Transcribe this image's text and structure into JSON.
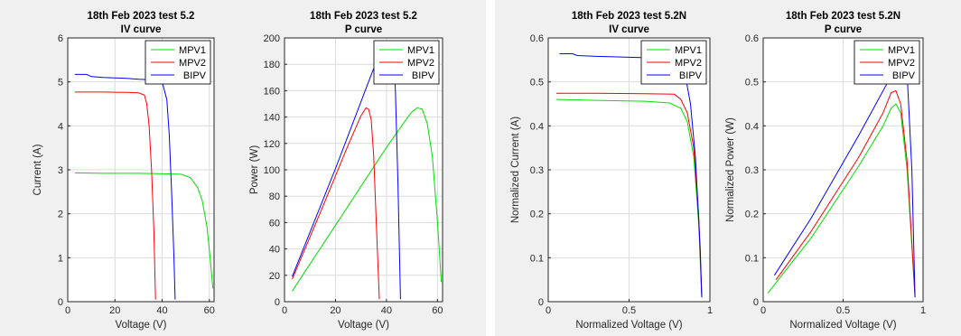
{
  "chart_data": [
    {
      "type": "line",
      "title": "18th Feb 2023 test 5.2",
      "subtitle": "IV curve",
      "xlabel": "Voltage (V)",
      "ylabel": "Current (A)",
      "xlim": [
        0,
        62
      ],
      "ylim": [
        0,
        6
      ],
      "xticks": [
        0,
        20,
        40,
        60
      ],
      "yticks": [
        0,
        1,
        2,
        3,
        4,
        5,
        6
      ],
      "grid": true,
      "legend": "top-right",
      "series": [
        {
          "name": "MPV1",
          "color": "#00e000",
          "x": [
            3,
            15,
            30,
            40,
            48,
            52,
            55,
            57,
            59,
            60.5,
            61.5
          ],
          "y": [
            2.93,
            2.92,
            2.92,
            2.91,
            2.9,
            2.82,
            2.6,
            2.3,
            1.7,
            0.9,
            0.3
          ]
        },
        {
          "name": "MPV2",
          "color": "#ff0000",
          "x": [
            3,
            15,
            25,
            30,
            32.5,
            33.5,
            34.5,
            35.5,
            36.5,
            37.2
          ],
          "y": [
            4.77,
            4.77,
            4.76,
            4.75,
            4.7,
            4.5,
            4.0,
            3.0,
            1.6,
            0.05
          ]
        },
        {
          "name": "BIPV",
          "color": "#0000ff",
          "x": [
            3,
            8,
            10,
            15,
            20,
            25,
            30,
            35,
            40,
            42,
            43,
            44,
            45,
            45.5
          ],
          "y": [
            5.17,
            5.17,
            5.12,
            5.1,
            5.09,
            5.08,
            5.06,
            5.05,
            5.0,
            4.6,
            3.8,
            2.5,
            1.0,
            0.05
          ]
        }
      ]
    },
    {
      "type": "line",
      "title": "18th Feb 2023 test 5.2",
      "subtitle": "P curve",
      "xlabel": "Voltage (V)",
      "ylabel": "Power (W)",
      "xlim": [
        0,
        62
      ],
      "ylim": [
        0,
        200
      ],
      "xticks": [
        0,
        20,
        40,
        60
      ],
      "yticks": [
        0,
        20,
        40,
        60,
        80,
        100,
        120,
        140,
        160,
        180,
        200
      ],
      "grid": true,
      "legend": "top-right",
      "series": [
        {
          "name": "MPV1",
          "color": "#00e000",
          "x": [
            3,
            20,
            40,
            48,
            50,
            52,
            54,
            56,
            58,
            60,
            61.5
          ],
          "y": [
            8,
            58,
            117,
            139,
            144,
            147,
            146,
            135,
            110,
            60,
            15
          ]
        },
        {
          "name": "MPV2",
          "color": "#ff0000",
          "x": [
            3,
            15,
            25,
            30,
            32,
            33,
            34,
            35,
            36,
            37.2
          ],
          "y": [
            17,
            72,
            119,
            141,
            147,
            146,
            138,
            110,
            60,
            2
          ]
        },
        {
          "name": "BIPV",
          "color": "#0000ff",
          "x": [
            3,
            20,
            35,
            38.5,
            42.5,
            43.5,
            44.5,
            45.5
          ],
          "y": [
            19,
            101,
            177,
            195,
            195,
            160,
            90,
            2
          ]
        }
      ]
    },
    {
      "type": "line",
      "title": "18th Feb 2023 test 5.2N",
      "subtitle": "IV curve",
      "xlabel": "Normalized Voltage (V)",
      "ylabel": "Normalized Current (A)",
      "xlim": [
        0,
        1
      ],
      "ylim": [
        0,
        0.6
      ],
      "xticks": [
        0,
        0.5,
        1
      ],
      "yticks": [
        0,
        0.1,
        0.2,
        0.3,
        0.4,
        0.5,
        0.6
      ],
      "grid": true,
      "legend": "top-right",
      "series": [
        {
          "name": "MPV1",
          "color": "#00e000",
          "x": [
            0.05,
            0.3,
            0.6,
            0.75,
            0.82,
            0.86,
            0.9,
            0.93,
            0.95
          ],
          "y": [
            0.46,
            0.458,
            0.456,
            0.452,
            0.44,
            0.41,
            0.33,
            0.18,
            0.01
          ]
        },
        {
          "name": "MPV2",
          "color": "#ff0000",
          "x": [
            0.05,
            0.3,
            0.6,
            0.78,
            0.82,
            0.86,
            0.9,
            0.93,
            0.95
          ],
          "y": [
            0.474,
            0.474,
            0.473,
            0.472,
            0.46,
            0.43,
            0.35,
            0.2,
            0.01
          ]
        },
        {
          "name": "BIPV",
          "color": "#0000ff",
          "x": [
            0.07,
            0.15,
            0.18,
            0.3,
            0.5,
            0.7,
            0.8,
            0.84,
            0.88,
            0.91,
            0.94,
            0.95
          ],
          "y": [
            0.564,
            0.564,
            0.56,
            0.558,
            0.556,
            0.554,
            0.552,
            0.53,
            0.45,
            0.33,
            0.12,
            0.01
          ]
        }
      ]
    },
    {
      "type": "line",
      "title": "18th Feb 2023 test 5.2N",
      "subtitle": "P curve",
      "xlabel": "Normalized Voltage (V)",
      "ylabel": "Normalized Power (W)",
      "xlim": [
        0,
        1
      ],
      "ylim": [
        0,
        0.6
      ],
      "xticks": [
        0,
        0.5,
        1
      ],
      "yticks": [
        0,
        0.1,
        0.2,
        0.3,
        0.4,
        0.5,
        0.6
      ],
      "grid": true,
      "legend": "top-right",
      "series": [
        {
          "name": "MPV1",
          "color": "#00e000",
          "x": [
            0.03,
            0.3,
            0.6,
            0.75,
            0.8,
            0.83,
            0.86,
            0.9,
            0.95
          ],
          "y": [
            0.02,
            0.145,
            0.31,
            0.4,
            0.44,
            0.45,
            0.43,
            0.3,
            0.01
          ]
        },
        {
          "name": "MPV2",
          "color": "#ff0000",
          "x": [
            0.08,
            0.3,
            0.6,
            0.75,
            0.8,
            0.83,
            0.86,
            0.9,
            0.95
          ],
          "y": [
            0.05,
            0.16,
            0.33,
            0.43,
            0.475,
            0.48,
            0.45,
            0.32,
            0.01
          ]
        },
        {
          "name": "BIPV",
          "color": "#0000ff",
          "x": [
            0.07,
            0.3,
            0.6,
            0.78,
            0.85,
            0.88,
            0.9,
            0.93,
            0.95
          ],
          "y": [
            0.06,
            0.19,
            0.38,
            0.5,
            0.55,
            0.56,
            0.52,
            0.3,
            0.01
          ]
        }
      ]
    }
  ]
}
